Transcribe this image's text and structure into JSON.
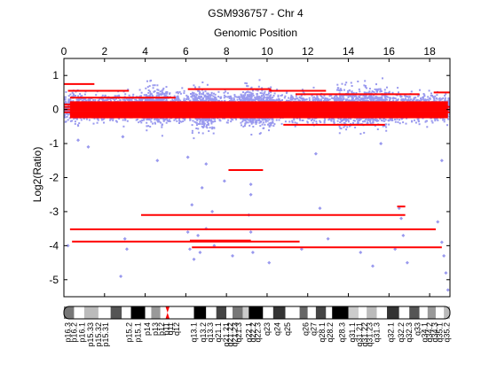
{
  "chart_data": {
    "type": "scatter",
    "title": "GSM936757 - Chr 4",
    "subtitle": "Genomic Position",
    "ylabel": "Log2(Ratio)",
    "xlabel": "",
    "xlim": [
      0,
      19
    ],
    "ylim": [
      -5.5,
      1.5
    ],
    "x_ticks": [
      0,
      2,
      4,
      6,
      8,
      10,
      12,
      14,
      16,
      18
    ],
    "y_ticks": [
      1,
      0,
      -1,
      -2,
      -3,
      -4,
      -5
    ],
    "grid": false,
    "point_color": "#9999ee",
    "segment_color": "#ff0000",
    "point_bands": [
      {
        "x": [
          0.0,
          19.0
        ],
        "y_center": 0.05,
        "spread": 0.35
      },
      {
        "x": [
          4.0,
          5.1
        ],
        "y_center": 0.1,
        "spread": 0.5
      },
      {
        "x": [
          6.3,
          7.4
        ],
        "y_center": 0.0,
        "spread": 0.55
      },
      {
        "x": [
          8.7,
          10.3
        ],
        "y_center": 0.05,
        "spread": 0.5
      },
      {
        "x": [
          13.4,
          15.9
        ],
        "y_center": 0.1,
        "spread": 0.5
      }
    ],
    "outliers": [
      {
        "x": 0.7,
        "y": -0.9
      },
      {
        "x": 1.2,
        "y": -1.1
      },
      {
        "x": 2.9,
        "y": -0.8
      },
      {
        "x": 4.6,
        "y": -1.5
      },
      {
        "x": 6.1,
        "y": -1.4
      },
      {
        "x": 7.0,
        "y": -1.6
      },
      {
        "x": 7.9,
        "y": -2.1
      },
      {
        "x": 9.2,
        "y": -2.2
      },
      {
        "x": 12.4,
        "y": -1.3
      },
      {
        "x": 15.6,
        "y": -1.0
      },
      {
        "x": 18.6,
        "y": -1.5
      },
      {
        "x": 6.3,
        "y": -2.8
      },
      {
        "x": 6.8,
        "y": -2.3
      },
      {
        "x": 7.3,
        "y": -3.0
      },
      {
        "x": 9.2,
        "y": -2.5
      },
      {
        "x": 12.6,
        "y": -2.9
      },
      {
        "x": 6.1,
        "y": -3.6
      },
      {
        "x": 6.2,
        "y": -4.1
      },
      {
        "x": 6.4,
        "y": -4.4
      },
      {
        "x": 6.6,
        "y": -3.7
      },
      {
        "x": 6.7,
        "y": -4.2
      },
      {
        "x": 7.0,
        "y": -3.5
      },
      {
        "x": 7.4,
        "y": -4.0
      },
      {
        "x": 8.3,
        "y": -4.3
      },
      {
        "x": 9.1,
        "y": -3.1
      },
      {
        "x": 9.2,
        "y": -3.6
      },
      {
        "x": 9.3,
        "y": -4.2
      },
      {
        "x": 10.1,
        "y": -4.5
      },
      {
        "x": 11.7,
        "y": -4.1
      },
      {
        "x": 13.0,
        "y": -3.8
      },
      {
        "x": 14.6,
        "y": -4.2
      },
      {
        "x": 16.5,
        "y": -2.9
      },
      {
        "x": 16.6,
        "y": -3.2
      },
      {
        "x": 16.7,
        "y": -3.7
      },
      {
        "x": 16.9,
        "y": -4.5
      },
      {
        "x": 16.3,
        "y": -4.1
      },
      {
        "x": 3.0,
        "y": -3.8
      },
      {
        "x": 3.1,
        "y": -4.1
      },
      {
        "x": 2.8,
        "y": -4.9
      },
      {
        "x": 18.4,
        "y": -3.3
      },
      {
        "x": 18.6,
        "y": -3.9
      },
      {
        "x": 18.7,
        "y": -4.3
      },
      {
        "x": 18.9,
        "y": -5.3
      },
      {
        "x": 18.8,
        "y": -4.8
      },
      {
        "x": 15.2,
        "y": -4.6
      },
      {
        "x": 0.2,
        "y": -4.0
      }
    ],
    "segments": [
      {
        "x0": 0.0,
        "x1": 19.0,
        "y": 0.08
      },
      {
        "x0": 0.0,
        "x1": 19.0,
        "y": 0.0
      },
      {
        "x0": 0.0,
        "x1": 19.0,
        "y": -0.08
      },
      {
        "x0": 0.0,
        "x1": 18.8,
        "y": 0.15
      },
      {
        "x0": 0.5,
        "x1": 17.5,
        "y": -0.15
      },
      {
        "x0": 0.2,
        "x1": 3.2,
        "y": 0.55
      },
      {
        "x0": 6.1,
        "x1": 10.2,
        "y": 0.6
      },
      {
        "x0": 10.1,
        "x1": 12.9,
        "y": 0.55
      },
      {
        "x0": 0.3,
        "x1": 5.5,
        "y": 0.35
      },
      {
        "x0": 11.4,
        "x1": 17.5,
        "y": 0.45
      },
      {
        "x0": 0.0,
        "x1": 1.5,
        "y": 0.75
      },
      {
        "x0": 18.2,
        "x1": 19.0,
        "y": 0.5
      },
      {
        "x0": 10.8,
        "x1": 15.8,
        "y": -0.45
      },
      {
        "x0": 8.1,
        "x1": 9.8,
        "y": -1.78
      },
      {
        "x0": 3.8,
        "x1": 16.8,
        "y": -3.1
      },
      {
        "x0": 16.4,
        "x1": 16.8,
        "y": -2.85
      },
      {
        "x0": 0.3,
        "x1": 18.3,
        "y": -3.52
      },
      {
        "x0": 0.4,
        "x1": 11.6,
        "y": -3.88
      },
      {
        "x0": 6.2,
        "x1": 9.2,
        "y": -3.85
      },
      {
        "x0": 6.3,
        "x1": 18.6,
        "y": -4.05
      }
    ],
    "ideogram": {
      "bands": [
        {
          "x0": 0.0,
          "x1": 0.5,
          "shade": "#777777"
        },
        {
          "x0": 0.5,
          "x1": 1.0,
          "shade": "#ffffff"
        },
        {
          "x0": 1.0,
          "x1": 1.7,
          "shade": "#bbbbbb"
        },
        {
          "x0": 1.7,
          "x1": 2.3,
          "shade": "#ffffff"
        },
        {
          "x0": 2.3,
          "x1": 2.85,
          "shade": "#555555"
        },
        {
          "x0": 2.85,
          "x1": 3.3,
          "shade": "#ffffff"
        },
        {
          "x0": 3.3,
          "x1": 4.0,
          "shade": "#000000"
        },
        {
          "x0": 4.0,
          "x1": 4.3,
          "shade": "#ffffff"
        },
        {
          "x0": 4.3,
          "x1": 4.75,
          "shade": "#999999"
        },
        {
          "x0": 4.75,
          "x1": 5.0,
          "shade": "#ffffff"
        },
        {
          "x0": 5.0,
          "x1": 5.2,
          "shade": "#ff0000"
        },
        {
          "x0": 5.2,
          "x1": 6.4,
          "shade": "#ffffff"
        },
        {
          "x0": 6.4,
          "x1": 7.0,
          "shade": "#000000"
        },
        {
          "x0": 7.0,
          "x1": 7.5,
          "shade": "#ffffff"
        },
        {
          "x0": 7.5,
          "x1": 8.0,
          "shade": "#444444"
        },
        {
          "x0": 8.0,
          "x1": 8.3,
          "shade": "#ffffff"
        },
        {
          "x0": 8.3,
          "x1": 8.8,
          "shade": "#777777"
        },
        {
          "x0": 8.8,
          "x1": 9.1,
          "shade": "#cccccc"
        },
        {
          "x0": 9.1,
          "x1": 9.8,
          "shade": "#000000"
        },
        {
          "x0": 9.8,
          "x1": 10.3,
          "shade": "#ffffff"
        },
        {
          "x0": 10.3,
          "x1": 10.9,
          "shade": "#333333"
        },
        {
          "x0": 10.9,
          "x1": 11.6,
          "shade": "#ffffff"
        },
        {
          "x0": 11.6,
          "x1": 12.0,
          "shade": "#666666"
        },
        {
          "x0": 12.0,
          "x1": 12.4,
          "shade": "#ffffff"
        },
        {
          "x0": 12.4,
          "x1": 12.9,
          "shade": "#444444"
        },
        {
          "x0": 12.9,
          "x1": 13.2,
          "shade": "#ffffff"
        },
        {
          "x0": 13.2,
          "x1": 14.0,
          "shade": "#000000"
        },
        {
          "x0": 14.0,
          "x1": 14.5,
          "shade": "#cccccc"
        },
        {
          "x0": 14.5,
          "x1": 14.9,
          "shade": "#ffffff"
        },
        {
          "x0": 14.9,
          "x1": 15.4,
          "shade": "#bbbbbb"
        },
        {
          "x0": 15.4,
          "x1": 15.9,
          "shade": "#ffffff"
        },
        {
          "x0": 15.9,
          "x1": 16.5,
          "shade": "#333333"
        },
        {
          "x0": 16.5,
          "x1": 17.0,
          "shade": "#ffffff"
        },
        {
          "x0": 17.0,
          "x1": 17.5,
          "shade": "#555555"
        },
        {
          "x0": 17.5,
          "x1": 17.9,
          "shade": "#ffffff"
        },
        {
          "x0": 17.9,
          "x1": 18.3,
          "shade": "#999999"
        },
        {
          "x0": 18.3,
          "x1": 18.7,
          "shade": "#ffffff"
        },
        {
          "x0": 18.7,
          "x1": 19.0,
          "shade": "#bbbbbb"
        }
      ],
      "labels": [
        {
          "x": 0.2,
          "text": "p16.3"
        },
        {
          "x": 0.5,
          "text": "p16.2"
        },
        {
          "x": 0.9,
          "text": "p16.1"
        },
        {
          "x": 1.3,
          "text": "p15.33"
        },
        {
          "x": 1.7,
          "text": "p15.32"
        },
        {
          "x": 2.05,
          "text": "p15.31"
        },
        {
          "x": 3.2,
          "text": "p15.2"
        },
        {
          "x": 3.65,
          "text": "p15.1"
        },
        {
          "x": 4.1,
          "text": "p14"
        },
        {
          "x": 4.5,
          "text": "p13"
        },
        {
          "x": 4.8,
          "text": "p12"
        },
        {
          "x": 5.05,
          "text": "p11"
        },
        {
          "x": 5.25,
          "text": "q11"
        },
        {
          "x": 5.55,
          "text": "q12"
        },
        {
          "x": 6.4,
          "text": "q13.1"
        },
        {
          "x": 6.85,
          "text": "q13.2"
        },
        {
          "x": 7.2,
          "text": "q13.3"
        },
        {
          "x": 7.6,
          "text": "q21.1"
        },
        {
          "x": 8.0,
          "text": "q21.21"
        },
        {
          "x": 8.2,
          "text": "q21.22"
        },
        {
          "x": 8.4,
          "text": "q21.23"
        },
        {
          "x": 8.6,
          "text": "q21.3"
        },
        {
          "x": 9.1,
          "text": "q22.1"
        },
        {
          "x": 9.3,
          "text": "q22.2"
        },
        {
          "x": 9.55,
          "text": "q22.3"
        },
        {
          "x": 10.0,
          "text": "q23"
        },
        {
          "x": 10.5,
          "text": "q24"
        },
        {
          "x": 11.0,
          "text": "q25"
        },
        {
          "x": 11.9,
          "text": "q26"
        },
        {
          "x": 12.3,
          "text": "q27"
        },
        {
          "x": 12.7,
          "text": "q28.1"
        },
        {
          "x": 13.1,
          "text": "q28.2"
        },
        {
          "x": 13.7,
          "text": "q28.3"
        },
        {
          "x": 14.2,
          "text": "q31.1"
        },
        {
          "x": 14.55,
          "text": "q31.21"
        },
        {
          "x": 14.8,
          "text": "q31.22"
        },
        {
          "x": 15.05,
          "text": "q31.23"
        },
        {
          "x": 15.4,
          "text": "q31.3"
        },
        {
          "x": 16.1,
          "text": "q32.1"
        },
        {
          "x": 16.6,
          "text": "q32.2"
        },
        {
          "x": 17.0,
          "text": "q32.3"
        },
        {
          "x": 17.4,
          "text": "q33"
        },
        {
          "x": 17.75,
          "text": "q34.1"
        },
        {
          "x": 18.0,
          "text": "q34.2"
        },
        {
          "x": 18.25,
          "text": "q34.3"
        },
        {
          "x": 18.5,
          "text": "q35.1"
        },
        {
          "x": 18.85,
          "text": "q35.2"
        }
      ]
    }
  }
}
